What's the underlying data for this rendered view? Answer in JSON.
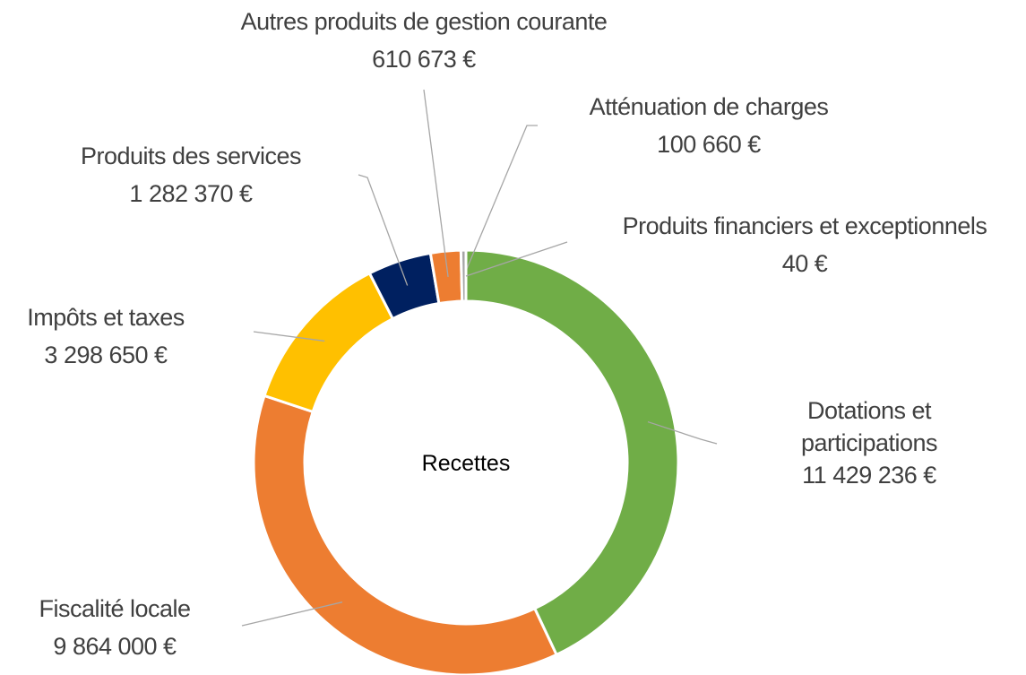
{
  "chart_data": {
    "type": "donut",
    "title": "Recettes",
    "categories": [
      "Dotations et participations",
      "Fiscalité locale",
      "Impôts et taxes",
      "Produits des services",
      "Autres produits de gestion courante",
      "Atténuation de charges",
      "Produits financiers et exceptionnels"
    ],
    "values": [
      11429236,
      9864000,
      3298650,
      1282370,
      610673,
      100660,
      40
    ],
    "value_labels": [
      "11 429 236 €",
      "9 864 000 €",
      "3 298 650 €",
      "1 282 370 €",
      "610 673 €",
      "100 660 €",
      "40 €"
    ],
    "colors": [
      "#70ad47",
      "#ed7d31",
      "#ffc000",
      "#002060",
      "#ed7d31",
      "#a5a5a5",
      "#5b9bd5"
    ]
  }
}
